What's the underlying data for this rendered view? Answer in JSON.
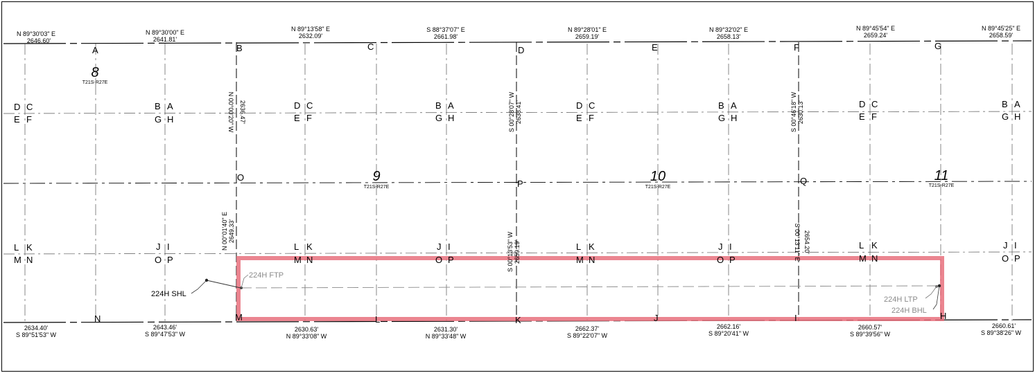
{
  "sections": [
    {
      "number": "8",
      "township": "T21S-R27E"
    },
    {
      "number": "9",
      "township": "T21S-R27E"
    },
    {
      "number": "10",
      "township": "T21S-R27E"
    },
    {
      "number": "11",
      "township": "T21S-R27E"
    }
  ],
  "top_calls": [
    {
      "bearing": "N 89°30'03\" E",
      "distance": "2646.60'"
    },
    {
      "bearing": "N 89°30'00\" E",
      "distance": "2641.81'"
    },
    {
      "bearing": "N 89°13'58\" E",
      "distance": "2632.09'"
    },
    {
      "bearing": "S 88°37'07\" E",
      "distance": "2661.98'"
    },
    {
      "bearing": "N 89°28'01\" E",
      "distance": "2659.19'"
    },
    {
      "bearing": "N 89°32'02\" E",
      "distance": "2658.13'"
    },
    {
      "bearing": "N 89°45'54\" E",
      "distance": "2659.24'"
    },
    {
      "bearing": "N 89°45'25\" E",
      "distance": "2658.59'"
    }
  ],
  "bottom_calls": [
    {
      "distance": "2634.40'",
      "bearing": "S 89°51'53\" W"
    },
    {
      "distance": "2643.46'",
      "bearing": "S 89°47'53\" W"
    },
    {
      "distance": "2630.63'",
      "bearing": "N 89°33'08\" W"
    },
    {
      "distance": "2631.30'",
      "bearing": "N 89°33'48\" W"
    },
    {
      "distance": "2662.37'",
      "bearing": "S 89°22'07\" W"
    },
    {
      "distance": "2662.16'",
      "bearing": "S 89°20'41\" W"
    },
    {
      "distance": "2660.57'",
      "bearing": "S 89°39'56\" W"
    },
    {
      "distance": "2660.61'",
      "bearing": "S 89°38'26\" W"
    }
  ],
  "vertical_calls": [
    {
      "bearing": "N 00°00'20\" W",
      "distance": "2636.47'"
    },
    {
      "bearing": "N 00°01'40\" E",
      "distance": "2649.33'"
    },
    {
      "bearing": "S 00°28'07\" W",
      "distance": "2638.41'"
    },
    {
      "bearing": "S 00°13'53\" W",
      "distance": "2659.19'"
    },
    {
      "bearing": "S 00°46'18\" W",
      "distance": "2630.13'"
    },
    {
      "bearing": "S 00°13'11\" E",
      "distance": "2654.20'"
    }
  ],
  "corner_points": {
    "top": [
      "A",
      "B",
      "C",
      "D",
      "E",
      "F",
      "G"
    ],
    "mid": [
      "O",
      "P",
      "Q"
    ],
    "bottom": [
      "N",
      "M",
      "L",
      "K",
      "J",
      "I",
      "H"
    ]
  },
  "quarter_labels": {
    "upper": [
      [
        "D",
        "C",
        "E",
        "F"
      ],
      [
        "B",
        "A",
        "G",
        "H"
      ]
    ],
    "lower": [
      [
        "L",
        "K",
        "M",
        "N"
      ],
      [
        "J",
        "I",
        "O",
        "P"
      ]
    ]
  },
  "well_labels": {
    "shl": "224H SHL",
    "ftp": "224H FTP",
    "ltp": "224H LTP",
    "bhl": "224H BHL"
  },
  "colors": {
    "project_area": "#e8707c",
    "linework": "#000000",
    "lateral": "#8a8a8a"
  }
}
